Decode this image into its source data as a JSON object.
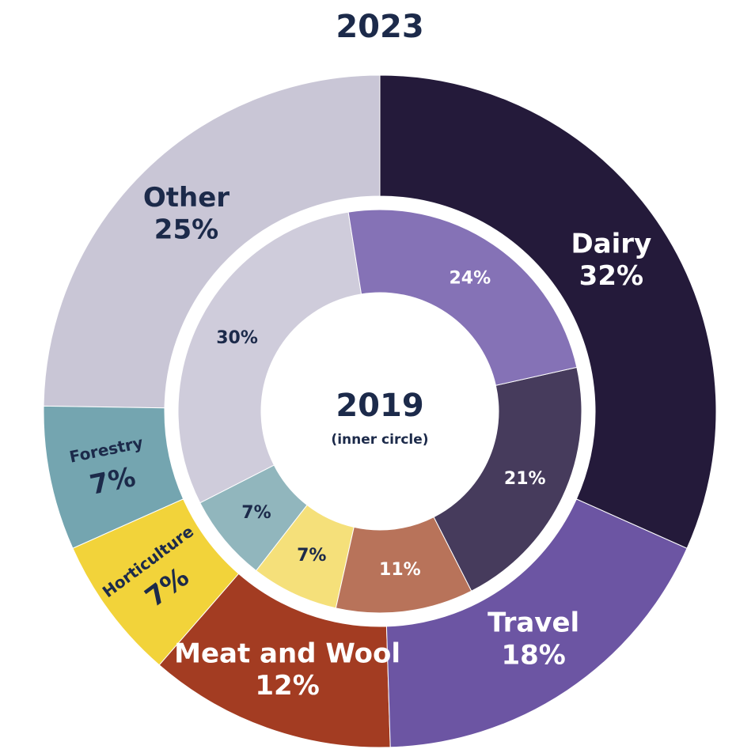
{
  "chart_data": {
    "type": "nested-donut",
    "title": "2023",
    "center_title": "2019",
    "center_subtitle": "(inner circle)",
    "series": [
      {
        "name": "2023",
        "categories": [
          "Dairy",
          "Travel",
          "Meat and Wool",
          "Horticulture",
          "Forestry",
          "Other"
        ],
        "values": [
          32,
          18,
          12,
          7,
          7,
          25
        ],
        "value_labels": [
          "32%",
          "18%",
          "12%",
          "7%",
          "7%",
          "25%"
        ],
        "colors": [
          "#241a3a",
          "#6c55a3",
          "#a33c22",
          "#f2d33a",
          "#74a5b0",
          "#c9c6d6"
        ]
      },
      {
        "name": "2019",
        "values": [
          24,
          21,
          11,
          7,
          7,
          30
        ],
        "value_labels": [
          "24%",
          "21%",
          "11%",
          "7%",
          "7%",
          "30%"
        ],
        "colors": [
          "#8572b6",
          "#463b5c",
          "#b8735a",
          "#f5e07a",
          "#91b6bd",
          "#cfccdb"
        ]
      }
    ]
  }
}
